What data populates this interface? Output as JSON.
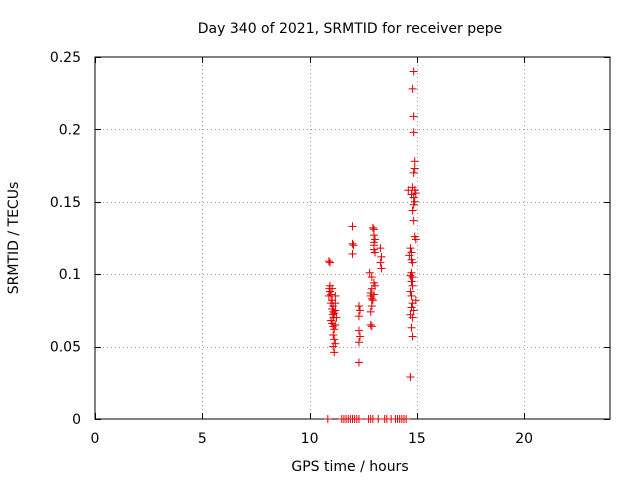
{
  "chart_data": {
    "type": "scatter",
    "title": "Day 340 of 2021, SRMTID for receiver pepe",
    "xlabel": "GPS time / hours",
    "ylabel": "SRMTID / TECUs",
    "xlim": [
      0,
      24
    ],
    "ylim": [
      0,
      0.25
    ],
    "xticks": [
      0,
      5,
      10,
      15,
      20
    ],
    "xtick_labels": [
      "0",
      "5",
      "10",
      "15",
      "20"
    ],
    "yticks": [
      0,
      0.05,
      0.1,
      0.15,
      0.2,
      0.25
    ],
    "ytick_labels": [
      "0",
      "0.05",
      "0.1",
      "0.15",
      "0.2",
      "0.25"
    ],
    "grid": true,
    "marker_color": "#e00000",
    "series": [
      {
        "name": "SRMTID",
        "points": [
          [
            10.9,
            0.109
          ],
          [
            10.95,
            0.108
          ],
          [
            10.92,
            0.09
          ],
          [
            10.95,
            0.088
          ],
          [
            10.9,
            0.085
          ],
          [
            11.0,
            0.086
          ],
          [
            11.05,
            0.082
          ],
          [
            11.0,
            0.08
          ],
          [
            11.1,
            0.078
          ],
          [
            11.05,
            0.076
          ],
          [
            11.1,
            0.074
          ],
          [
            11.15,
            0.073
          ],
          [
            11.08,
            0.072
          ],
          [
            11.12,
            0.07
          ],
          [
            11.2,
            0.075
          ],
          [
            11.2,
            0.085
          ],
          [
            11.0,
            0.068
          ],
          [
            11.05,
            0.066
          ],
          [
            11.1,
            0.064
          ],
          [
            11.15,
            0.062
          ],
          [
            11.1,
            0.058
          ],
          [
            11.15,
            0.055
          ],
          [
            11.2,
            0.052
          ],
          [
            11.1,
            0.05
          ],
          [
            11.15,
            0.046
          ],
          [
            10.95,
            0.092
          ],
          [
            11.05,
            0.09
          ],
          [
            11.2,
            0.08
          ],
          [
            11.25,
            0.07
          ],
          [
            11.2,
            0.065
          ],
          [
            12.0,
            0.133
          ],
          [
            12.0,
            0.121
          ],
          [
            12.05,
            0.12
          ],
          [
            12.0,
            0.114
          ],
          [
            12.3,
            0.078
          ],
          [
            12.35,
            0.075
          ],
          [
            12.3,
            0.071
          ],
          [
            12.3,
            0.061
          ],
          [
            12.35,
            0.057
          ],
          [
            12.3,
            0.053
          ],
          [
            12.3,
            0.039
          ],
          [
            12.8,
            0.101
          ],
          [
            12.9,
            0.098
          ],
          [
            12.9,
            0.09
          ],
          [
            12.85,
            0.087
          ],
          [
            12.85,
            0.085
          ],
          [
            12.9,
            0.083
          ],
          [
            13.0,
            0.086
          ],
          [
            12.95,
            0.082
          ],
          [
            12.9,
            0.078
          ],
          [
            12.85,
            0.074
          ],
          [
            12.85,
            0.065
          ],
          [
            12.9,
            0.064
          ],
          [
            13.0,
            0.094
          ],
          [
            13.05,
            0.092
          ],
          [
            12.95,
            0.132
          ],
          [
            13.0,
            0.131
          ],
          [
            13.0,
            0.127
          ],
          [
            13.05,
            0.124
          ],
          [
            13.0,
            0.122
          ],
          [
            13.0,
            0.12
          ],
          [
            13.0,
            0.117
          ],
          [
            13.05,
            0.115
          ],
          [
            13.3,
            0.118
          ],
          [
            13.35,
            0.112
          ],
          [
            13.3,
            0.108
          ],
          [
            13.35,
            0.104
          ],
          [
            14.85,
            0.24
          ],
          [
            14.8,
            0.228
          ],
          [
            14.85,
            0.209
          ],
          [
            14.85,
            0.198
          ],
          [
            14.9,
            0.178
          ],
          [
            14.9,
            0.173
          ],
          [
            14.85,
            0.17
          ],
          [
            14.6,
            0.158
          ],
          [
            14.8,
            0.16
          ],
          [
            14.9,
            0.158
          ],
          [
            14.95,
            0.156
          ],
          [
            14.75,
            0.155
          ],
          [
            14.85,
            0.153
          ],
          [
            14.9,
            0.15
          ],
          [
            14.85,
            0.148
          ],
          [
            14.8,
            0.144
          ],
          [
            14.85,
            0.137
          ],
          [
            14.9,
            0.126
          ],
          [
            14.95,
            0.124
          ],
          [
            14.7,
            0.118
          ],
          [
            14.75,
            0.115
          ],
          [
            14.65,
            0.113
          ],
          [
            14.75,
            0.11
          ],
          [
            14.8,
            0.108
          ],
          [
            14.75,
            0.101
          ],
          [
            14.7,
            0.099
          ],
          [
            14.8,
            0.098
          ],
          [
            14.75,
            0.095
          ],
          [
            14.8,
            0.092
          ],
          [
            14.7,
            0.088
          ],
          [
            14.75,
            0.085
          ],
          [
            14.8,
            0.08
          ],
          [
            14.95,
            0.082
          ],
          [
            14.75,
            0.077
          ],
          [
            14.85,
            0.075
          ],
          [
            14.7,
            0.072
          ],
          [
            14.8,
            0.07
          ],
          [
            14.75,
            0.063
          ],
          [
            14.8,
            0.057
          ],
          [
            14.7,
            0.029
          ],
          [
            10.85,
            0.0
          ],
          [
            11.5,
            0.0
          ],
          [
            11.6,
            0.0
          ],
          [
            11.7,
            0.0
          ],
          [
            11.8,
            0.0
          ],
          [
            11.9,
            0.0
          ],
          [
            12.0,
            0.0
          ],
          [
            12.1,
            0.0
          ],
          [
            12.2,
            0.0
          ],
          [
            12.3,
            0.0
          ],
          [
            12.75,
            0.0
          ],
          [
            12.85,
            0.0
          ],
          [
            12.95,
            0.0
          ],
          [
            13.2,
            0.0
          ],
          [
            13.5,
            0.0
          ],
          [
            13.6,
            0.0
          ],
          [
            13.8,
            0.0
          ],
          [
            14.0,
            0.0
          ],
          [
            14.1,
            0.0
          ],
          [
            14.2,
            0.0
          ],
          [
            14.3,
            0.0
          ],
          [
            14.4,
            0.0
          ],
          [
            14.5,
            0.0
          ]
        ]
      }
    ]
  }
}
